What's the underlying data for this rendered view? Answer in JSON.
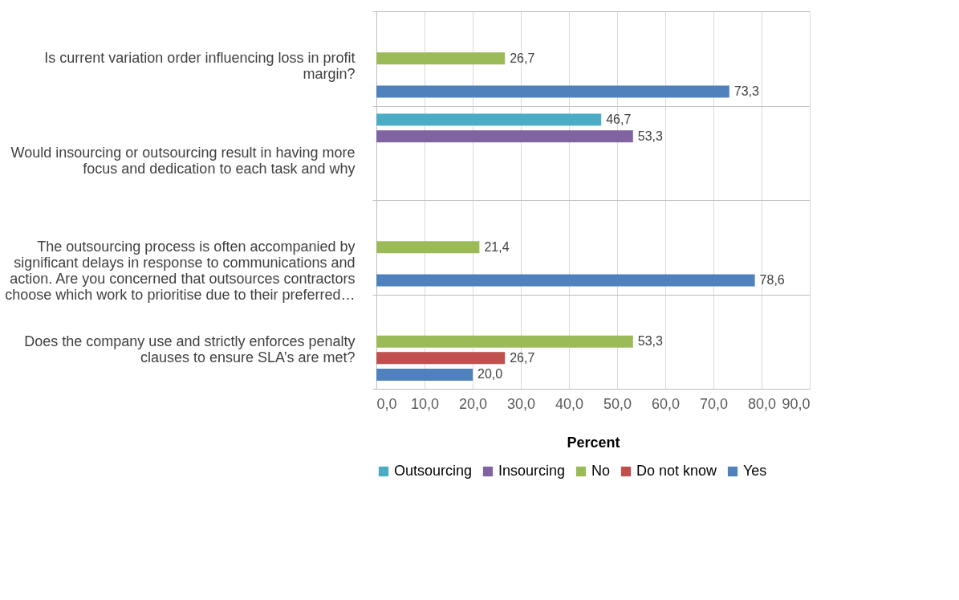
{
  "chart_data": {
    "type": "bar",
    "orientation": "horizontal",
    "xlabel": "Percent",
    "categories": [
      "Is current variation order influencing loss in profit margin?",
      "Would insourcing or outsourcing result in having more focus and dedication to each task and why",
      "The outsourcing process is often accompanied by significant delays in response to communications and action. Are you concerned that outsources contractors choose which work to prioritise due to their preferred…",
      "Does the company use and strictly enforces penalty clauses to ensure SLA’s are met?"
    ],
    "series": [
      {
        "name": "Outsourcing",
        "color": "#4bacc6",
        "values": [
          null,
          46.7,
          null,
          null
        ],
        "value_labels": [
          null,
          "46,7",
          null,
          null
        ]
      },
      {
        "name": "Insourcing",
        "color": "#8064a2",
        "values": [
          null,
          53.3,
          null,
          null
        ],
        "value_labels": [
          null,
          "53,3",
          null,
          null
        ]
      },
      {
        "name": "No",
        "color": "#9bbb59",
        "values": [
          26.7,
          null,
          21.4,
          53.3
        ],
        "value_labels": [
          "26,7",
          null,
          "21,4",
          "53,3"
        ]
      },
      {
        "name": "Do not know",
        "color": "#c0504d",
        "values": [
          null,
          null,
          null,
          26.7
        ],
        "value_labels": [
          null,
          null,
          null,
          "26,7"
        ]
      },
      {
        "name": "Yes",
        "color": "#4f81bd",
        "values": [
          73.3,
          null,
          78.6,
          20.0
        ],
        "value_labels": [
          "73,3",
          null,
          "78,6",
          "20,0"
        ]
      }
    ],
    "xlim": [
      0,
      90
    ],
    "xticks": [
      {
        "value": 0,
        "label": "0,0"
      },
      {
        "value": 10,
        "label": "10,0"
      },
      {
        "value": 20,
        "label": "20,0"
      },
      {
        "value": 30,
        "label": "30,0"
      },
      {
        "value": 40,
        "label": "40,0"
      },
      {
        "value": 50,
        "label": "50,0"
      },
      {
        "value": 60,
        "label": "60,0"
      },
      {
        "value": 70,
        "label": "70,0"
      },
      {
        "value": 80,
        "label": "80,0"
      },
      {
        "value": 90,
        "label": "90,0"
      }
    ],
    "grid": true,
    "legend": "bottom"
  }
}
